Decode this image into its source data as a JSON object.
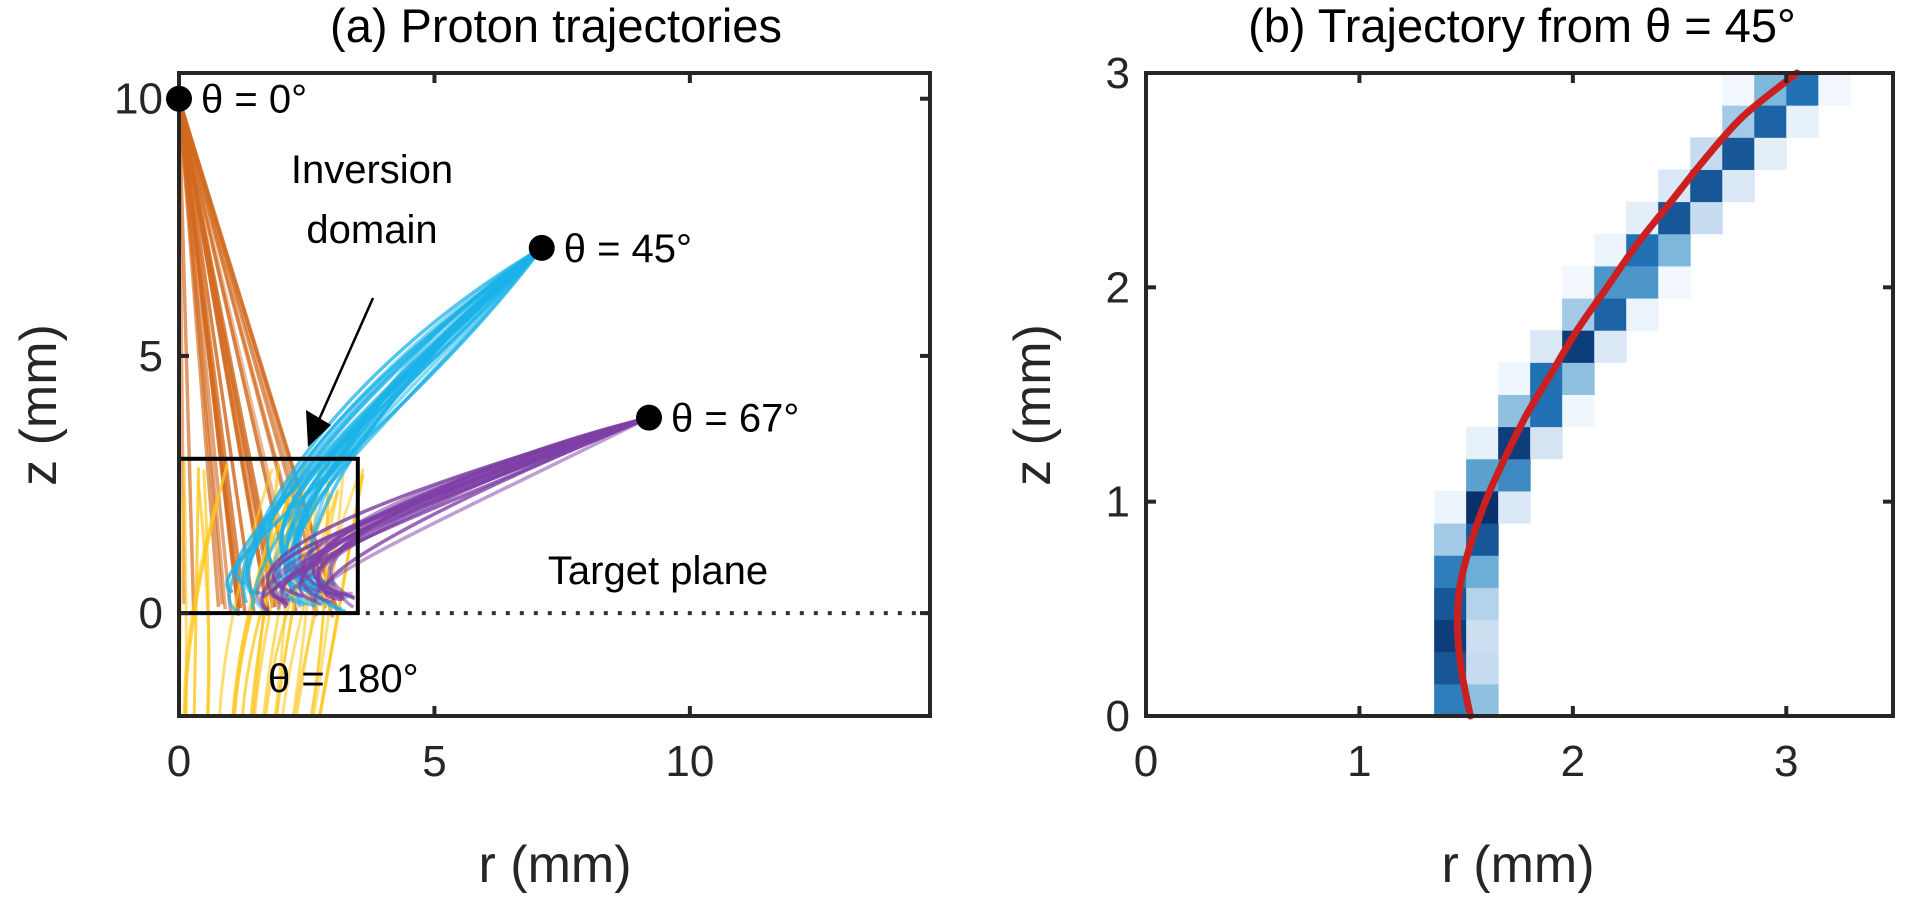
{
  "chart_data": [
    {
      "type": "line",
      "title": "(a) Proton trajectories",
      "xlabel": "r (mm)",
      "ylabel": "z (mm)",
      "xlim": [
        0,
        14.7
      ],
      "ylim": [
        -2,
        10.5
      ],
      "xticks": [
        0,
        5,
        10
      ],
      "yticks": [
        0,
        5,
        10
      ],
      "sources": [
        {
          "label": "θ = 0°",
          "r": 0,
          "z": 10,
          "color": "#D2691E"
        },
        {
          "label": "θ = 45°",
          "r": 7.1,
          "z": 7.1,
          "color": "#1AB2E8"
        },
        {
          "label": "θ = 67°",
          "r": 9.2,
          "z": 3.8,
          "color": "#7E3FA6"
        },
        {
          "label": "θ = 180°",
          "r": null,
          "z": null,
          "color": "#FFC61A"
        }
      ],
      "inversion_domain": {
        "r": [
          0,
          3.5
        ],
        "z": [
          0,
          3
        ],
        "label_line1": "Inversion",
        "label_line2": "domain"
      },
      "target_plane": {
        "z": 0,
        "label": "Target plane"
      }
    },
    {
      "type": "heatmap",
      "title": "(b) Trajectory from θ = 45°",
      "xlabel": "r (mm)",
      "ylabel": "z (mm)",
      "xlim": [
        0,
        3.5
      ],
      "ylim": [
        0,
        3
      ],
      "xticks": [
        0,
        1,
        2,
        3
      ],
      "yticks": [
        0,
        1,
        2,
        3
      ],
      "bin_size": 0.15,
      "cells": [
        [
          9,
          0,
          0.7
        ],
        [
          10,
          0,
          0.4
        ],
        [
          9,
          1,
          0.85
        ],
        [
          10,
          1,
          0.25
        ],
        [
          9,
          2,
          0.95
        ],
        [
          10,
          2,
          0.22
        ],
        [
          9,
          3,
          0.85
        ],
        [
          10,
          3,
          0.3
        ],
        [
          9,
          4,
          0.7
        ],
        [
          10,
          4,
          0.5
        ],
        [
          9,
          5,
          0.35
        ],
        [
          10,
          5,
          0.85
        ],
        [
          9,
          6,
          0.05
        ],
        [
          10,
          6,
          1.0
        ],
        [
          11,
          6,
          0.15
        ],
        [
          10,
          7,
          0.55
        ],
        [
          11,
          7,
          0.65
        ],
        [
          10,
          8,
          0.08
        ],
        [
          11,
          8,
          0.95
        ],
        [
          12,
          8,
          0.18
        ],
        [
          11,
          9,
          0.4
        ],
        [
          12,
          9,
          0.75
        ],
        [
          13,
          9,
          0.04
        ],
        [
          11,
          10,
          0.04
        ],
        [
          12,
          10,
          0.75
        ],
        [
          13,
          10,
          0.4
        ],
        [
          12,
          11,
          0.15
        ],
        [
          13,
          11,
          0.95
        ],
        [
          14,
          11,
          0.15
        ],
        [
          13,
          12,
          0.35
        ],
        [
          14,
          12,
          0.8
        ],
        [
          15,
          12,
          0.06
        ],
        [
          13,
          13,
          0.03
        ],
        [
          14,
          13,
          0.6
        ],
        [
          15,
          13,
          0.6
        ],
        [
          16,
          13,
          0.03
        ],
        [
          14,
          14,
          0.05
        ],
        [
          15,
          14,
          0.75
        ],
        [
          16,
          14,
          0.45
        ],
        [
          15,
          15,
          0.1
        ],
        [
          16,
          15,
          0.85
        ],
        [
          17,
          15,
          0.25
        ],
        [
          16,
          16,
          0.15
        ],
        [
          17,
          16,
          0.85
        ],
        [
          18,
          16,
          0.15
        ],
        [
          17,
          17,
          0.25
        ],
        [
          18,
          17,
          0.85
        ],
        [
          19,
          17,
          0.1
        ],
        [
          18,
          18,
          0.35
        ],
        [
          19,
          18,
          0.8
        ],
        [
          20,
          18,
          0.08
        ],
        [
          18,
          19,
          0.03
        ],
        [
          19,
          19,
          0.45
        ],
        [
          20,
          19,
          0.75
        ],
        [
          21,
          19,
          0.03
        ]
      ],
      "curve": {
        "color": "#CC1F1F",
        "points": [
          [
            1.52,
            0
          ],
          [
            1.48,
            0.2
          ],
          [
            1.46,
            0.4
          ],
          [
            1.47,
            0.6
          ],
          [
            1.52,
            0.8
          ],
          [
            1.59,
            1.0
          ],
          [
            1.68,
            1.2
          ],
          [
            1.78,
            1.4
          ],
          [
            1.9,
            1.6
          ],
          [
            2.02,
            1.8
          ],
          [
            2.16,
            2.0
          ],
          [
            2.3,
            2.2
          ],
          [
            2.46,
            2.4
          ],
          [
            2.62,
            2.6
          ],
          [
            2.8,
            2.8
          ],
          [
            3.05,
            3.0
          ]
        ]
      }
    }
  ]
}
